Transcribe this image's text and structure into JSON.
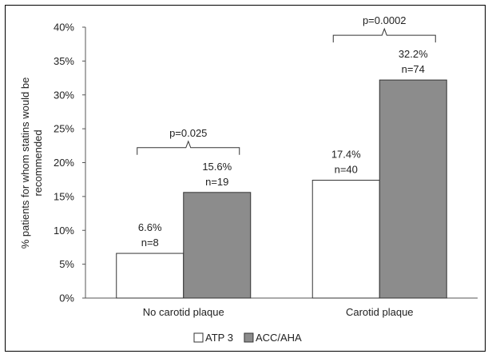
{
  "chart_data": {
    "type": "bar",
    "categories": [
      "No carotid plaque",
      "Carotid plaque"
    ],
    "series": [
      {
        "name": "ATP 3",
        "values": [
          6.6,
          17.4
        ],
        "color": "#ffffff",
        "labels": [
          [
            "6.6%",
            "n=8"
          ],
          [
            "17.4%",
            "n=40"
          ]
        ]
      },
      {
        "name": "ACC/AHA",
        "values": [
          15.6,
          32.2
        ],
        "color": "#8c8c8c",
        "labels": [
          [
            "15.6%",
            "n=19"
          ],
          [
            "32.2%",
            "n=74"
          ]
        ]
      }
    ],
    "ylabel": "% patients for whom statins would be recommended",
    "ylabel_lines": [
      "% patients for whom statins would be",
      "recommended"
    ],
    "ylim": [
      0,
      40
    ],
    "yticks": [
      0,
      5,
      10,
      15,
      20,
      25,
      30,
      35,
      40
    ],
    "ytick_labels": [
      "0%",
      "5%",
      "10%",
      "15%",
      "20%",
      "25%",
      "30%",
      "35%",
      "40%"
    ],
    "annotations": [
      {
        "text": "p=0.025",
        "category_index": 0
      },
      {
        "text": "p=0.0002",
        "category_index": 1
      }
    ],
    "legend_position": "bottom",
    "grid": false
  }
}
